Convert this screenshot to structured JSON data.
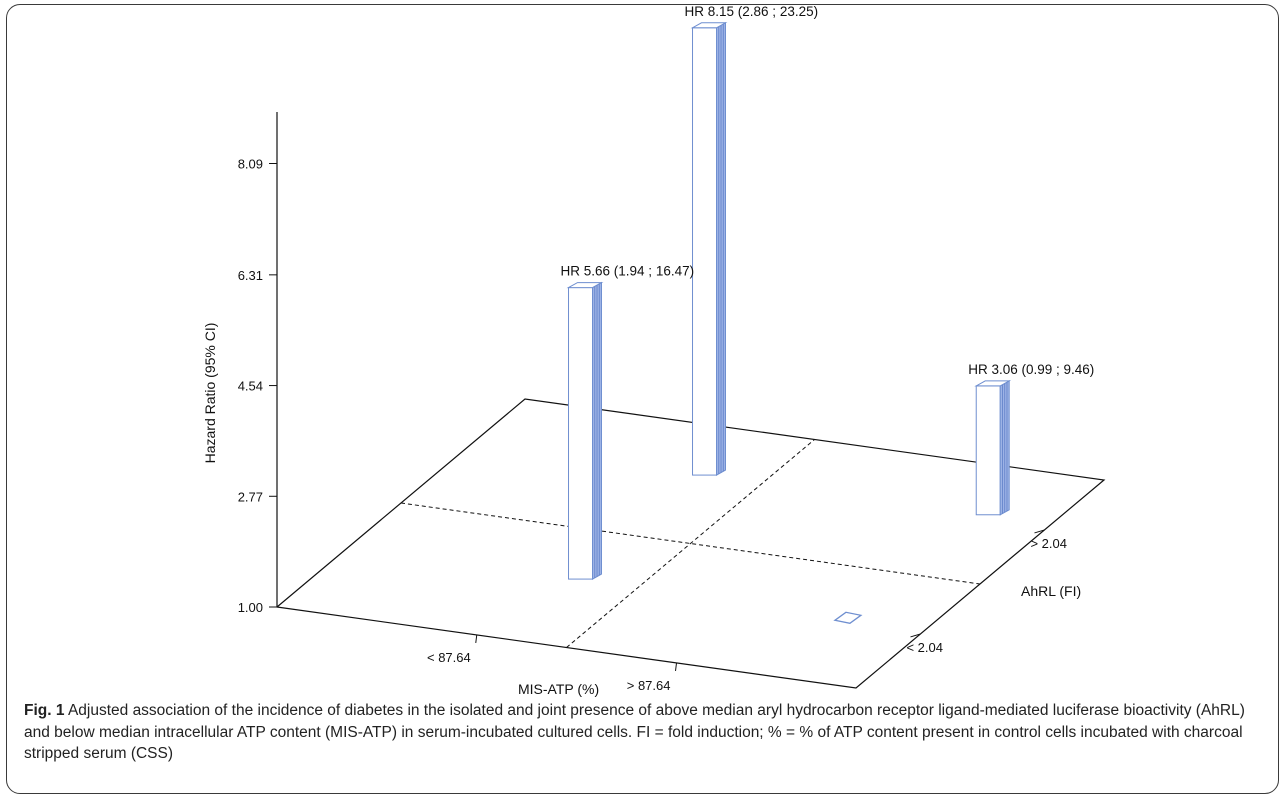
{
  "chart_data": {
    "type": "bar",
    "subtype": "3d-bar",
    "ylabel": "Hazard Ratio (95% CI)",
    "y_ticks": [
      "1.00",
      "2.77",
      "4.54",
      "6.31",
      "8.09"
    ],
    "ylim": [
      1.0,
      8.09
    ],
    "x_axis": {
      "label": "MIS-ATP (%)",
      "categories": [
        "< 87.64",
        "> 87.64"
      ]
    },
    "z_axis": {
      "label": "AhRL (FI)",
      "categories": [
        "< 2.04",
        "> 2.04"
      ]
    },
    "bars": [
      {
        "mis_atp": "< 87.64",
        "ahrl": "> 2.04",
        "value": 8.15,
        "label": "HR 8.15 (2.86 ; 23.25)"
      },
      {
        "mis_atp": "< 87.64",
        "ahrl": "< 2.04",
        "value": 5.66,
        "label": "HR 5.66 (1.94 ; 16.47)"
      },
      {
        "mis_atp": "> 87.64",
        "ahrl": "> 2.04",
        "value": 3.06,
        "label": "HR 3.06 (0.99 ; 9.46)"
      },
      {
        "mis_atp": "> 87.64",
        "ahrl": "< 2.04",
        "value": 1.0,
        "label": ""
      }
    ],
    "colors": {
      "bar_face": "#ffffff",
      "bar_edge": "#6f8fd0",
      "bar_side": "#9db3e6"
    },
    "grid": false
  },
  "caption": {
    "label": "Fig. 1",
    "text": "Adjusted association of the incidence of diabetes in the isolated and joint presence of above median aryl hydrocarbon receptor ligand-mediated luciferase bioactivity (AhRL) and below median intracellular ATP content (MIS-ATP) in serum-incubated cultured cells. FI = fold induction; % = % of ATP content present in control cells incubated with charcoal stripped serum (CSS)"
  }
}
